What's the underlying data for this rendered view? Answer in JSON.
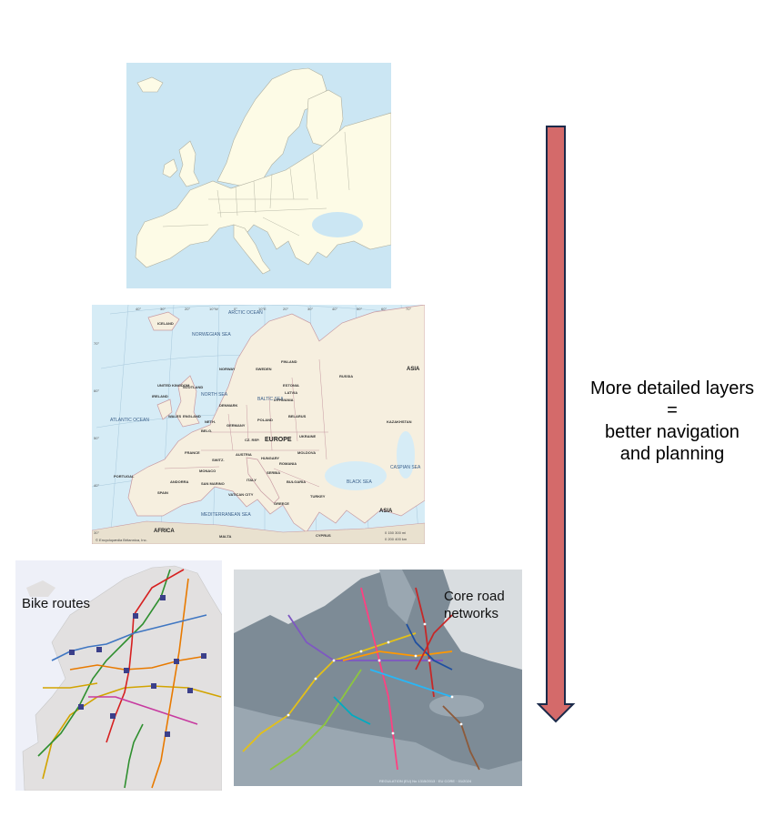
{
  "maps": {
    "political": {
      "labels": {
        "ocean": "ARCTIC OCEAN",
        "atlantic": "ATLANTIC OCEAN",
        "norwegian_sea": "NORWEGIAN SEA",
        "north_sea": "NORTH SEA",
        "baltic_sea": "BALTIC SEA",
        "black_sea": "BLACK SEA",
        "caspian_sea": "CASPIAN SEA",
        "mediterranean": "MEDITERRANEAN SEA",
        "europe": "EUROPE",
        "asia_top": "ASIA",
        "asia_bottom": "ASIA",
        "africa": "AFRICA",
        "russia": "RUSSIA",
        "iceland": "ICELAND",
        "norway": "NORWAY",
        "sweden": "SWEDEN",
        "finland": "FINLAND",
        "estonia": "ESTONIA",
        "latvia": "LATVIA",
        "lithuania": "LITHUANIA",
        "belarus": "BELARUS",
        "ukraine": "UKRAINE",
        "poland": "POLAND",
        "germany": "GERMANY",
        "czech": "CZ. REP.",
        "austria": "AUSTRIA",
        "hungary": "HUNGARY",
        "romania": "ROMANIA",
        "moldova": "MOLDOVA",
        "bulgaria": "BULGARIA",
        "serbia": "SERBIA",
        "greece": "GREECE",
        "turkey": "TURKEY",
        "italy": "ITALY",
        "france": "FRANCE",
        "spain": "SPAIN",
        "portugal": "PORTUGAL",
        "switzerland": "SWITZ.",
        "netherlands": "NETH.",
        "belgium": "BELG.",
        "denmark": "DENMARK",
        "uk": "UNITED KINGDOM",
        "ireland": "IRELAND",
        "scotland": "SCOTLAND",
        "england": "ENGLAND",
        "wales": "WALES",
        "kazakhstan": "KAZAKHSTAN",
        "andorra": "ANDORRA",
        "monaco": "MONACO",
        "san_marino": "SAN MARINO",
        "vatican": "VATICAN CITY",
        "malta": "MALTA",
        "cyprus": "CYPRUS",
        "credit": "© Encyclopædia Britannica, Inc.",
        "scale_mi": "0    150   300 mi",
        "scale_km": "0   200   400 km"
      },
      "longitudes": [
        "40°",
        "30°",
        "20°",
        "10°W",
        "0°",
        "10°E",
        "20°",
        "30°",
        "40°",
        "50°",
        "60°",
        "70°"
      ],
      "latitudes": [
        "70°",
        "60°",
        "50°",
        "40°",
        "30°"
      ]
    },
    "road": {
      "footer": "REGULATION (EU) No 1315/2013 · EU CORE · 01/2024"
    }
  },
  "captions": {
    "bike": "Bike routes",
    "road": [
      "Core road",
      "networks"
    ]
  },
  "arrow": {
    "color": "#d46a6a",
    "stroke": "#1b2a4a",
    "lines": [
      "More detailed layers",
      "=",
      "better navigation",
      "and planning"
    ]
  }
}
